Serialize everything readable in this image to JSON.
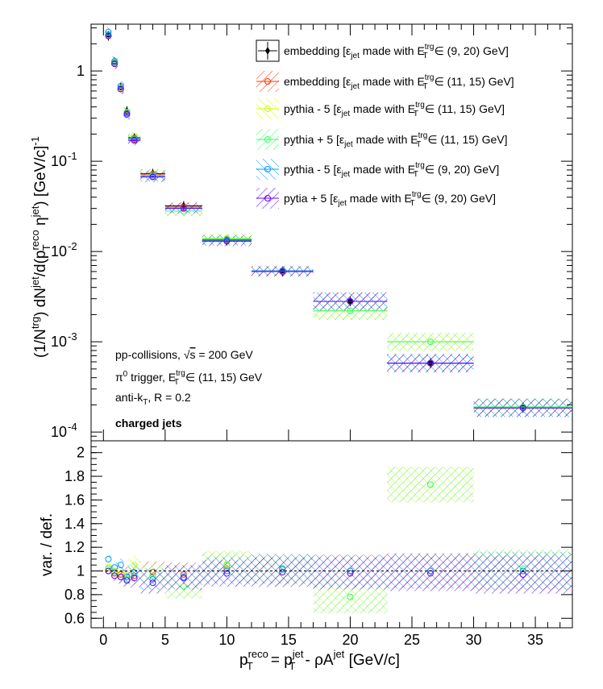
{
  "chart_data": [
    {
      "type": "scatter",
      "panel": "top",
      "yscale": "log",
      "ylim": [
        8e-05,
        3.3
      ],
      "xlim": [
        -1,
        38
      ],
      "ylabel": "(1/N^trg) dN^jet/d(p_T^reco η^jet) [GeV/c]^-1",
      "ytick_labels": [
        "1",
        "10^-1",
        "10^-2",
        "10^-3",
        "10^-4"
      ],
      "legend_position": "top-right",
      "annotations": [
        "pp-collisions, √s = 200 GeV",
        "π⁰ trigger, E_T^trg ∈ (11, 15) GeV",
        "anti-k_T, R = 0.2",
        "charged jets"
      ],
      "x": [
        0.4,
        0.9,
        1.4,
        1.9,
        2.5,
        4.0,
        6.5,
        10.0,
        14.5,
        20.0,
        26.5,
        34.0
      ],
      "x_err": [
        0.2,
        0.25,
        0.25,
        0.25,
        0.5,
        1.0,
        1.5,
        2.0,
        2.5,
        3.0,
        3.5,
        4.0
      ],
      "series": [
        {
          "name": "embedding [ε_jet made with E_T^trg ∈ (9, 20) GeV]",
          "color": "#000000",
          "values": [
            2.45,
            1.25,
            0.66,
            0.36,
            0.182,
            0.073,
            0.032,
            0.0132,
            0.006,
            0.0028,
            0.00058,
            0.000185
          ]
        },
        {
          "name": "embedding [ε_jet made with E_T^trg ∈ (11, 15) GeV]",
          "color": "#ff3300",
          "values": [
            2.45,
            1.22,
            0.64,
            0.35,
            0.175,
            0.072,
            0.031,
            0.0135,
            0.0061,
            0.0028,
            0.00058,
            0.000185
          ]
        },
        {
          "name": "pythia - 5 [ε_jet made with E_T^trg ∈ (11, 15) GeV]",
          "color": "#ccff00",
          "values": [
            2.5,
            1.25,
            0.65,
            0.35,
            0.19,
            0.07,
            0.028,
            0.014,
            0.006,
            0.0022,
            0.001,
            0.000185
          ]
        },
        {
          "name": "pythia + 5 [ε_jet made with E_T^trg ∈ (11, 15) GeV]",
          "color": "#33ff66",
          "values": [
            2.5,
            1.24,
            0.63,
            0.34,
            0.178,
            0.07,
            0.028,
            0.0138,
            0.006,
            0.0022,
            0.001,
            0.00019
          ]
        },
        {
          "name": "pythia - 5 [ε_jet made with E_T^trg ∈ (9, 20) GeV]",
          "color": "#0099ff",
          "values": [
            2.7,
            1.28,
            0.68,
            0.34,
            0.18,
            0.068,
            0.03,
            0.0132,
            0.0061,
            0.0028,
            0.00058,
            0.000185
          ]
        },
        {
          "name": "pytia + 5 [ε_jet made with E_T^trg ∈ (9, 20) GeV]",
          "color": "#6600ff",
          "values": [
            2.45,
            1.2,
            0.63,
            0.33,
            0.17,
            0.067,
            0.03,
            0.013,
            0.006,
            0.0028,
            0.00058,
            0.000185
          ]
        }
      ]
    },
    {
      "type": "scatter",
      "panel": "bottom",
      "ylim": [
        0.52,
        2.1
      ],
      "xlim": [
        -1,
        38
      ],
      "ylabel": "var. / def.",
      "xlabel": "p_T^reco = p_T^jet - ρA^jet [GeV/c]",
      "xticks": [
        0,
        5,
        10,
        15,
        20,
        25,
        30,
        35
      ],
      "yticks": [
        0.6,
        0.8,
        1,
        1.2,
        1.4,
        1.6,
        1.8,
        2
      ],
      "reference_line": 1,
      "x": [
        0.4,
        0.9,
        1.4,
        1.9,
        2.5,
        4.0,
        6.5,
        10.0,
        14.5,
        20.0,
        26.5,
        34.0
      ],
      "series": [
        {
          "name": "embedding (11,15)",
          "color": "#ff3300",
          "values": [
            1.0,
            0.98,
            0.97,
            0.97,
            0.96,
            0.99,
            0.97,
            1.02,
            1.01,
            1.0,
            1.0,
            1.0
          ]
        },
        {
          "name": "pythia - 5 (11,15)",
          "color": "#ccff00",
          "values": [
            1.03,
            1.0,
            0.98,
            0.97,
            1.05,
            0.96,
            0.87,
            1.06,
            1.01,
            0.78,
            1.73,
            1.0
          ]
        },
        {
          "name": "pythia + 5 (11,15)",
          "color": "#33ff66",
          "values": [
            1.02,
            0.99,
            0.95,
            0.93,
            0.98,
            0.96,
            0.87,
            1.05,
            1.01,
            0.78,
            1.73,
            1.02
          ]
        },
        {
          "name": "pythia - 5 (9,20)",
          "color": "#0099ff",
          "values": [
            1.1,
            1.03,
            1.05,
            0.95,
            0.99,
            0.93,
            0.95,
            1.0,
            1.02,
            1.0,
            1.0,
            1.0
          ]
        },
        {
          "name": "pytia + 5 (9,20)",
          "color": "#6600ff",
          "values": [
            1.0,
            0.96,
            0.95,
            0.92,
            0.94,
            0.9,
            0.94,
            0.98,
            0.99,
            0.98,
            0.98,
            0.97
          ]
        }
      ]
    }
  ]
}
